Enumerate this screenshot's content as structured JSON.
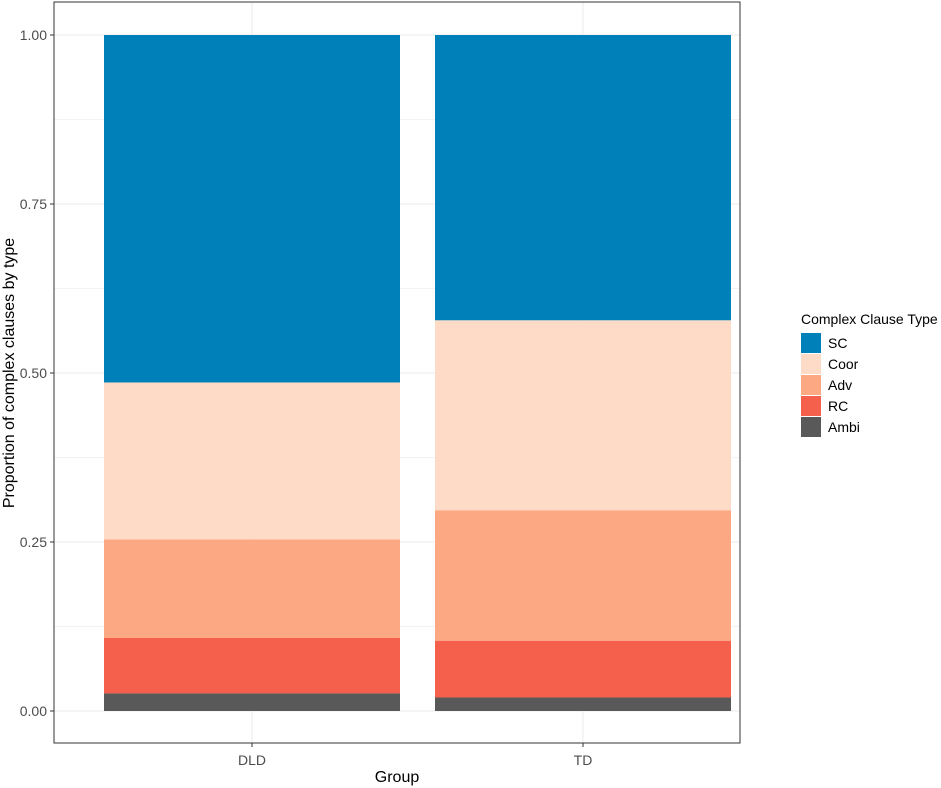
{
  "chart_data": {
    "type": "bar",
    "stacked": true,
    "xlabel": "Group",
    "ylabel": "Proportion of complex clauses by type",
    "categories": [
      "DLD",
      "TD"
    ],
    "ylim": [
      0,
      1
    ],
    "yticks": [
      "0.00",
      "0.25",
      "0.50",
      "0.75",
      "1.00"
    ],
    "grid": true,
    "legend": {
      "title": "Complex Clause Type",
      "position": "right"
    },
    "series": [
      {
        "name": "SC",
        "color": "#0080b8",
        "values": [
          0.514,
          0.422
        ]
      },
      {
        "name": "Coor",
        "color": "#fddbc7",
        "values": [
          0.232,
          0.281
        ]
      },
      {
        "name": "Adv",
        "color": "#fca882",
        "values": [
          0.146,
          0.193
        ]
      },
      {
        "name": "RC",
        "color": "#f4604b",
        "values": [
          0.082,
          0.084
        ]
      },
      {
        "name": "Ambi",
        "color": "#595959",
        "values": [
          0.026,
          0.02
        ]
      }
    ]
  }
}
